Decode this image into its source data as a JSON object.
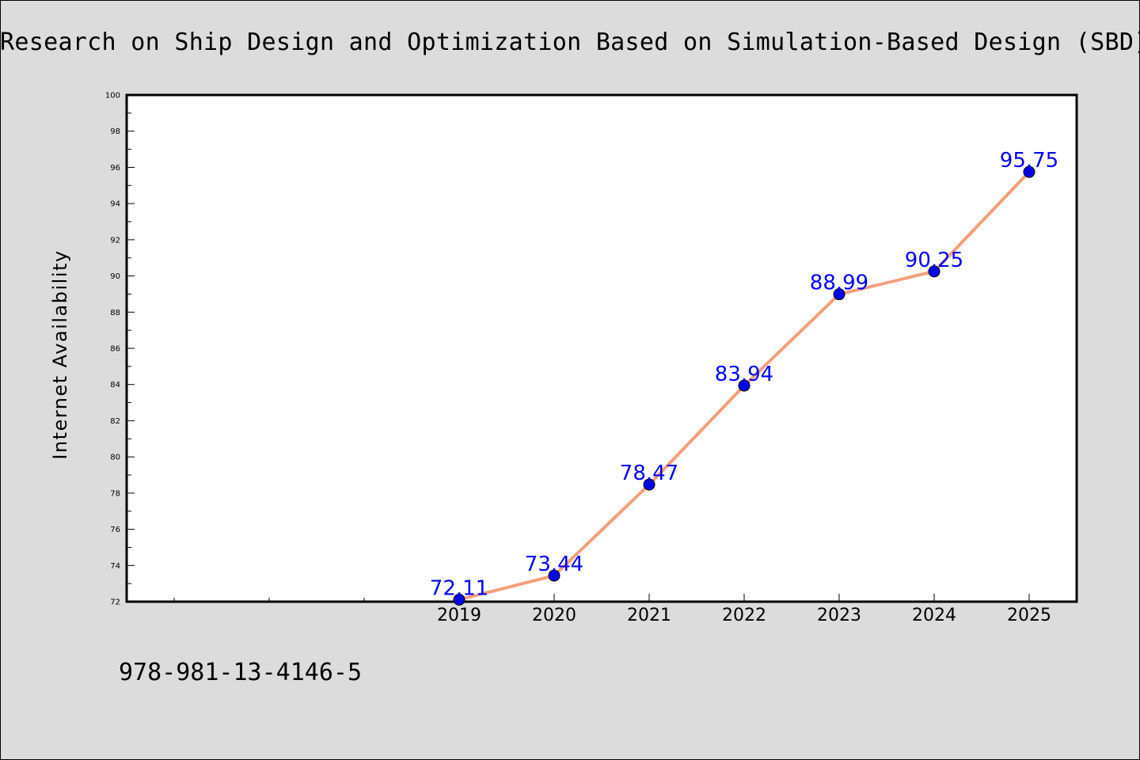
{
  "chart_data": {
    "type": "line",
    "title": "Research on Ship Design and Optimization Based on Simulation-Based Design (SBD)",
    "xlabel": "",
    "ylabel": "Internet Availability",
    "x": [
      "2019",
      "2020",
      "2021",
      "2022",
      "2023",
      "2024",
      "2025"
    ],
    "series": [
      {
        "values": [
          72.11,
          73.44,
          78.47,
          83.94,
          88.99,
          90.25,
          95.75
        ],
        "labels": [
          "72.11",
          "73.44",
          "78.47",
          "83.94",
          "88.99",
          "90.25",
          "95.75"
        ]
      }
    ],
    "ylim": [
      72,
      100
    ],
    "yticks": [
      "72",
      "74",
      "76",
      "78",
      "80",
      "82",
      "84",
      "86",
      "88",
      "90",
      "92",
      "94",
      "96",
      "98",
      "100"
    ],
    "grid": false,
    "legend": "none",
    "colors": {
      "line": "#f4a07c",
      "marker": "#0000ee",
      "data_label": "#0000ff",
      "plot_background": "#ffffff",
      "page_background": "#dcdcdc"
    }
  },
  "footer": {
    "isbn": "978-981-13-4146-5"
  }
}
